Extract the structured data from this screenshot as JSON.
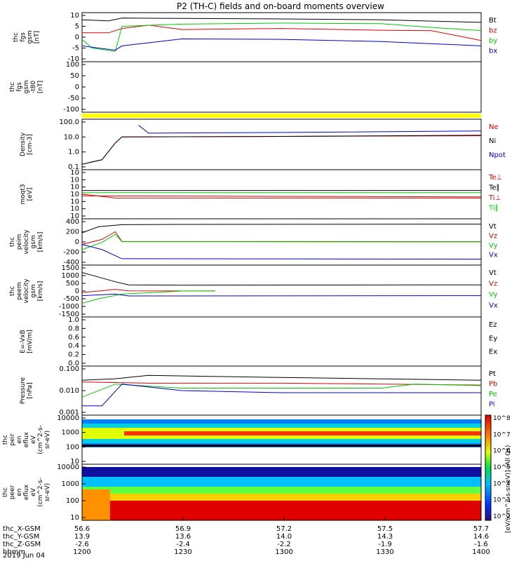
{
  "title": "P2 (TH-C) fields and on-board moments overview",
  "date_label": "2019 Jun 04",
  "row_labels": [
    "thc_X-GSM",
    "thc_Y-GSM",
    "thc_Z-GSM",
    "hhmm"
  ],
  "x_ticks": {
    "x": [
      "56.6",
      "56.9",
      "57.2",
      "57.5",
      "57.7"
    ],
    "y": [
      "13.9",
      "13.6",
      "14.0",
      "14.3",
      "14.6"
    ],
    "z": [
      "-2.6",
      "-2.4",
      "-2.2",
      "-1.9",
      "-1.6"
    ],
    "hhmm": [
      "1200",
      "1230",
      "1300",
      "1330",
      "1400"
    ]
  },
  "colorbar_label": "[eV/(cm^2-s-sr-eV)] (All Qs)",
  "colorbar_ticks": [
    "10^8",
    "10^7",
    "10^6",
    "10^5",
    "10^4",
    "10^3",
    "10^2"
  ],
  "colors": {
    "black": "#000000",
    "red": "#dd0000",
    "green": "#00cc00",
    "blue": "#0000cc",
    "yellow": "#ffff00"
  },
  "panels": [
    {
      "id": "fgs",
      "ylabel": [
        "thc",
        "fgs",
        "gsm",
        "[nT]"
      ],
      "yticks": [
        "10",
        "5",
        "0",
        "-5",
        "-10"
      ],
      "legend": [
        "Bt",
        "bz",
        "by",
        "bx"
      ]
    },
    {
      "id": "fgs_tilt",
      "ylabel": [
        "thc",
        "fgs",
        "gsm",
        "-t80",
        "[nT]"
      ],
      "yticks": [
        "100",
        "50",
        "0",
        "-50",
        "-100"
      ],
      "legend": []
    },
    {
      "id": "density",
      "ylabel": [
        "Density",
        "[cm-3]"
      ],
      "yticks": [
        "100.0",
        "10.0",
        "1.0",
        "0.1"
      ],
      "legend": [
        "Ne",
        "Ni",
        "Npot"
      ]
    },
    {
      "id": "temp",
      "ylabel": [
        "moqt3",
        "[eV]"
      ],
      "yticks": [
        "10",
        "10",
        "10",
        "10",
        "10",
        "10",
        "10"
      ],
      "legend": [
        "Te⊥",
        "Te∥",
        "Ti⊥",
        "Ti∥"
      ]
    },
    {
      "id": "peim",
      "ylabel": [
        "thc",
        "peim",
        "velocity",
        "gsm",
        "[km/s]"
      ],
      "yticks": [
        "400",
        "200",
        "0",
        "-200",
        "-400"
      ],
      "legend": [
        "Vt",
        "Vz",
        "Vy",
        "Vx"
      ]
    },
    {
      "id": "peem",
      "ylabel": [
        "thc",
        "peem",
        "velocity",
        "gsm",
        "[km/s]"
      ],
      "yticks": [
        "1500",
        "1000",
        "500",
        "0",
        "-500",
        "-1000",
        "-1500"
      ],
      "legend": [
        "Vt",
        "Vz",
        "Vy",
        "Vx"
      ]
    },
    {
      "id": "efield",
      "ylabel": [
        "E=-VxB",
        "[mV/m]"
      ],
      "yticks": [
        "1.0",
        "0.8",
        "0.6",
        "0.4",
        "0.2",
        "0.0"
      ],
      "legend": [
        "Ez",
        "Ey",
        "Ex"
      ]
    },
    {
      "id": "pressure",
      "ylabel": [
        "Pressure",
        "[nPa]"
      ],
      "yticks": [
        "0.100",
        "0.010",
        "0.001"
      ],
      "legend": [
        "Pt",
        "Pb",
        "Pe",
        "Pi"
      ]
    },
    {
      "id": "peir",
      "ylabel": [
        "thc",
        "peir",
        "en",
        "eflux",
        "eV",
        "(cm^2-s-",
        "sr-eV)"
      ],
      "yticks": [
        "10000",
        "1000",
        "100",
        "10"
      ],
      "legend": []
    },
    {
      "id": "peer",
      "ylabel": [
        "thc",
        "peer",
        "en",
        "eflux",
        "eV",
        "(cm^2-s-",
        "sr-eV)"
      ],
      "yticks": [
        "10000",
        "1000",
        "100",
        "10"
      ],
      "legend": []
    }
  ],
  "chart_data": {
    "type": "line",
    "title": "P2 (TH-C) fields and on-board moments overview",
    "x_axis": "hhmm",
    "x": [
      "1200",
      "1230",
      "1300",
      "1330",
      "1400"
    ],
    "panels": [
      {
        "name": "thc_fgs_gsm",
        "ylabel": "[nT]",
        "ylim": [
          -10,
          10
        ],
        "series": [
          {
            "name": "Bt",
            "color": "black",
            "points": [
              [
                1200,
                8
              ],
              [
                1208,
                7.5
              ],
              [
                1212,
                8.8
              ],
              [
                1230,
                8.6
              ],
              [
                1300,
                8.4
              ],
              [
                1330,
                8.0
              ],
              [
                1400,
                6.8
              ]
            ]
          },
          {
            "name": "bz",
            "color": "red",
            "points": [
              [
                1200,
                2
              ],
              [
                1208,
                2
              ],
              [
                1212,
                4
              ],
              [
                1220,
                5.5
              ],
              [
                1230,
                3.5
              ],
              [
                1300,
                4
              ],
              [
                1330,
                3.2
              ],
              [
                1345,
                3
              ],
              [
                1400,
                -1.5
              ]
            ]
          },
          {
            "name": "by",
            "color": "green",
            "points": [
              [
                1200,
                -1
              ],
              [
                1203,
                -5
              ],
              [
                1210,
                -6.5
              ],
              [
                1212,
                5
              ],
              [
                1230,
                6
              ],
              [
                1300,
                6.5
              ],
              [
                1330,
                6.2
              ],
              [
                1345,
                4.5
              ],
              [
                1400,
                3
              ]
            ]
          },
          {
            "name": "bx",
            "color": "blue",
            "points": [
              [
                1200,
                -4
              ],
              [
                1210,
                -6
              ],
              [
                1212,
                -4
              ],
              [
                1230,
                -0.8
              ],
              [
                1300,
                -1
              ],
              [
                1330,
                -2
              ],
              [
                1400,
                -4
              ]
            ]
          }
        ]
      },
      {
        "name": "thc_fgs_gsm_t80",
        "ylabel": "[nT]",
        "ylim": [
          -100,
          100
        ],
        "series": []
      },
      {
        "name": "Density",
        "ylabel": "[cm-3]",
        "scale": "log",
        "ylim": [
          0.1,
          100
        ],
        "series": [
          {
            "name": "Ne",
            "color": "red",
            "points": [
              [
                1200,
                0.15
              ],
              [
                1206,
                0.3
              ],
              [
                1210,
                4
              ],
              [
                1212,
                10
              ],
              [
                1300,
                11
              ],
              [
                1400,
                12
              ]
            ]
          },
          {
            "name": "Ni",
            "color": "black",
            "points": [
              [
                1200,
                0.15
              ],
              [
                1206,
                0.3
              ],
              [
                1210,
                4
              ],
              [
                1212,
                10
              ],
              [
                1300,
                11
              ],
              [
                1400,
                13
              ]
            ]
          },
          {
            "name": "Npot",
            "color": "blue",
            "points": [
              [
                1217,
                60
              ],
              [
                1220,
                18
              ],
              [
                1300,
                20
              ],
              [
                1400,
                25
              ]
            ]
          }
        ]
      },
      {
        "name": "moqt3",
        "ylabel": "[eV]",
        "scale": "log",
        "series": [
          {
            "name": "Te⊥",
            "color": "red",
            "points": [
              [
                1200,
                5000
              ],
              [
                1210,
                3000
              ],
              [
                1400,
                3000
              ]
            ]
          },
          {
            "name": "Te∥",
            "color": "black",
            "points": [
              [
                1200,
                8000
              ],
              [
                1400,
                8000
              ]
            ]
          },
          {
            "name": "Ti⊥",
            "color": "red",
            "points": [
              [
                1200,
                4000
              ],
              [
                1400,
                3500
              ]
            ]
          },
          {
            "name": "Ti∥",
            "color": "green",
            "points": [
              [
                1200,
                6000
              ],
              [
                1400,
                6000
              ]
            ]
          }
        ]
      },
      {
        "name": "thc_peim_velocity_gsm",
        "ylabel": "[km/s]",
        "ylim": [
          -400,
          400
        ],
        "series": [
          {
            "name": "Vt",
            "color": "black",
            "points": [
              [
                1200,
                180
              ],
              [
                1205,
                300
              ],
              [
                1212,
                340
              ],
              [
                1230,
                345
              ],
              [
                1400,
                350
              ]
            ]
          },
          {
            "name": "Vz",
            "color": "red",
            "points": [
              [
                1200,
                -50
              ],
              [
                1206,
                50
              ],
              [
                1210,
                200
              ],
              [
                1212,
                10
              ],
              [
                1400,
                5
              ]
            ]
          },
          {
            "name": "Vy",
            "color": "green",
            "points": [
              [
                1200,
                -150
              ],
              [
                1206,
                -10
              ],
              [
                1210,
                150
              ],
              [
                1212,
                5
              ],
              [
                1400,
                0
              ]
            ]
          },
          {
            "name": "Vx",
            "color": "blue",
            "points": [
              [
                1200,
                -50
              ],
              [
                1206,
                -150
              ],
              [
                1211,
                -300
              ],
              [
                1212,
                -330
              ],
              [
                1400,
                -340
              ]
            ]
          }
        ]
      },
      {
        "name": "thc_peem_velocity_gsm",
        "ylabel": "[km/s]",
        "ylim": [
          -1500,
          1500
        ],
        "series": [
          {
            "name": "Vt",
            "color": "black",
            "points": [
              [
                1200,
                1200
              ],
              [
                1205,
                900
              ],
              [
                1210,
                600
              ],
              [
                1214,
                400
              ],
              [
                1230,
                380
              ],
              [
                1400,
                400
              ]
            ]
          },
          {
            "name": "Vz",
            "color": "red",
            "points": [
              [
                1200,
                -100
              ],
              [
                1210,
                100
              ],
              [
                1214,
                10
              ],
              [
                1240,
                0
              ]
            ]
          },
          {
            "name": "Vy",
            "color": "green",
            "points": [
              [
                1200,
                -800
              ],
              [
                1205,
                -500
              ],
              [
                1212,
                -200
              ],
              [
                1230,
                0
              ],
              [
                1240,
                10
              ]
            ]
          },
          {
            "name": "Vx",
            "color": "blue",
            "points": [
              [
                1200,
                -300
              ],
              [
                1210,
                -200
              ],
              [
                1214,
                -320
              ],
              [
                1400,
                -300
              ]
            ]
          }
        ]
      },
      {
        "name": "E=-VxB",
        "ylabel": "[mV/m]",
        "ylim": [
          0,
          1.0
        ],
        "series": []
      },
      {
        "name": "Pressure",
        "ylabel": "[nPa]",
        "scale": "log",
        "ylim": [
          0.001,
          0.1
        ],
        "series": [
          {
            "name": "Pt",
            "color": "black",
            "points": [
              [
                1200,
                0.03
              ],
              [
                1210,
                0.035
              ],
              [
                1220,
                0.05
              ],
              [
                1300,
                0.04
              ],
              [
                1400,
                0.03
              ]
            ]
          },
          {
            "name": "Pb",
            "color": "red",
            "points": [
              [
                1200,
                0.025
              ],
              [
                1220,
                0.022
              ],
              [
                1300,
                0.022
              ],
              [
                1400,
                0.018
              ]
            ]
          },
          {
            "name": "Pe",
            "color": "green",
            "points": [
              [
                1200,
                0.005
              ],
              [
                1210,
                0.02
              ],
              [
                1230,
                0.013
              ],
              [
                1330,
                0.013
              ],
              [
                1340,
                0.02
              ],
              [
                1400,
                0.017
              ]
            ]
          },
          {
            "name": "Pi",
            "color": "blue",
            "points": [
              [
                1200,
                0.002
              ],
              [
                1206,
                0.002
              ],
              [
                1212,
                0.02
              ],
              [
                1230,
                0.01
              ],
              [
                1300,
                0.008
              ],
              [
                1400,
                0.008
              ]
            ]
          }
        ]
      },
      {
        "name": "thc_peir_en_eflux",
        "type": "heatmap",
        "scale": "log",
        "ylim": [
          10,
          10000
        ]
      },
      {
        "name": "thc_peer_en_eflux",
        "type": "heatmap",
        "scale": "log",
        "ylim": [
          10,
          10000
        ]
      }
    ]
  }
}
